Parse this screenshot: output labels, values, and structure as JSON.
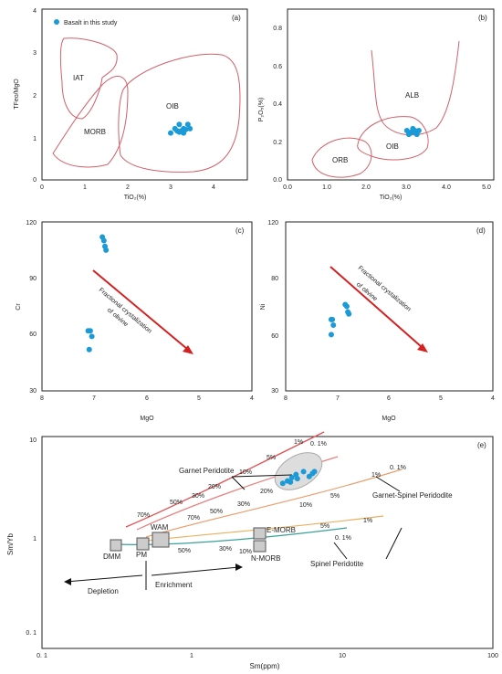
{
  "colors": {
    "point": "#1a9ad6",
    "field": "#d0606a",
    "arrow": "#d42020",
    "axis": "#222"
  },
  "panels": {
    "a": {
      "tag": "(a)",
      "xlabel": "TiO₂(%)",
      "ylabel": "TFeo/MgO",
      "legend": "Basalt in this study",
      "xticks": [
        "0",
        "1",
        "2",
        "3",
        "4"
      ],
      "yticks": [
        "0",
        "1",
        "2",
        "3",
        "4"
      ],
      "fields": [
        "IAT",
        "MORB",
        "OIB"
      ]
    },
    "b": {
      "tag": "(b)",
      "xlabel": "TiO₂(%)",
      "ylabel": "P₂O₅(%)",
      "xticks": [
        "0.0",
        "1.0",
        "2.0",
        "3.0",
        "4.0",
        "5.0"
      ],
      "yticks": [
        "0.0",
        "0.2",
        "0.4",
        "0.6",
        "0.8"
      ],
      "fields": [
        "ORB",
        "OIB",
        "ALB"
      ]
    },
    "c": {
      "tag": "(c)",
      "xlabel": "MgO",
      "ylabel": "Cr",
      "xticks": [
        "8",
        "7",
        "6",
        "5",
        "4"
      ],
      "yticks": [
        "30",
        "60",
        "90",
        "120"
      ],
      "arrow_label_1": "Fractional crystalization",
      "arrow_label_2": "of olivine"
    },
    "d": {
      "tag": "(d)",
      "xlabel": "MgO",
      "ylabel": "Ni",
      "xticks": [
        "8",
        "7",
        "6",
        "5",
        "4"
      ],
      "yticks": [
        "30",
        "60",
        "80",
        "120"
      ],
      "arrow_label_1": "Fractional crystalization",
      "arrow_label_2": "of olivine"
    },
    "e": {
      "tag": "(e)",
      "xlabel": "Sm(ppm)",
      "ylabel": "Sm/Yb",
      "xticks": [
        "0. 1",
        "1",
        "10",
        "100"
      ],
      "yticks": [
        "0. 1",
        "1",
        "10"
      ],
      "labels": {
        "garnet": "Garnet Peridotite",
        "garnet_spinel": "Garnet-Spinel Peridodite",
        "spinel": "Spinel Peridotite",
        "wam": "WAM",
        "emorb": "E-MORB",
        "nmorb": "N-MORB",
        "dmm": "DMM",
        "pm": "PM",
        "depletion": "Depletion",
        "enrichment": "Enrichment"
      }
    }
  },
  "chart_data": [
    {
      "panel": "a",
      "type": "scatter",
      "x": [
        3.0,
        3.1,
        3.2,
        3.25,
        3.3,
        3.35,
        3.4,
        3.2,
        3.3,
        3.45,
        3.15
      ],
      "y": [
        1.1,
        1.2,
        1.12,
        1.15,
        1.2,
        1.18,
        1.3,
        1.3,
        1.1,
        1.2,
        1.15
      ],
      "xlim": [
        0,
        5
      ],
      "ylim": [
        0,
        4
      ]
    },
    {
      "panel": "b",
      "type": "scatter",
      "x": [
        3.0,
        3.1,
        3.15,
        3.2,
        3.25,
        3.05,
        3.3,
        3.2
      ],
      "y": [
        0.26,
        0.25,
        0.27,
        0.26,
        0.24,
        0.24,
        0.26,
        0.25
      ],
      "xlim": [
        0,
        5
      ],
      "ylim": [
        0,
        0.9
      ]
    },
    {
      "panel": "c",
      "type": "scatter",
      "x": [
        6.85,
        6.82,
        6.8,
        6.78,
        7.12,
        7.08,
        7.05,
        7.1
      ],
      "y": [
        112,
        110,
        107,
        105,
        62,
        62,
        59,
        52
      ],
      "xlim": [
        8,
        4
      ],
      "ylim": [
        30,
        120
      ]
    },
    {
      "panel": "d",
      "type": "scatter",
      "x": [
        7.12,
        7.1,
        7.08,
        7.12,
        6.85,
        6.82,
        6.8,
        6.78
      ],
      "y": [
        68,
        68,
        65,
        60,
        76,
        75,
        72,
        71
      ],
      "xlim": [
        8,
        4
      ],
      "ylim": [
        30,
        120
      ]
    },
    {
      "panel": "e",
      "type": "line",
      "log_x": true,
      "log_y": true,
      "xlim": [
        0.1,
        100
      ],
      "ylim": [
        0.05,
        10
      ],
      "scatter": {
        "x": [
          4.0,
          4.3,
          4.6,
          4.9,
          5.5,
          6.0,
          6.3,
          6.5,
          4.5,
          5.0
        ],
        "y": [
          3.4,
          3.6,
          3.9,
          4.2,
          4.5,
          4.0,
          4.3,
          4.5,
          3.5,
          3.8
        ]
      },
      "series": [
        {
          "name": "Garnet Peridotite",
          "ticks": [
            "70%",
            "50%",
            "30%",
            "20%",
            "10%",
            "5%",
            "1%",
            "0. 1%"
          ]
        },
        {
          "name": "Garnet-Spinel Peridodite",
          "ticks": [
            "70%",
            "50%",
            "30%",
            "20%",
            "10%",
            "5%",
            "1%",
            "0. 1%"
          ]
        },
        {
          "name": "Spinel Peridotite",
          "ticks": [
            "50%",
            "30%",
            "10%",
            "5%",
            "1%",
            "0. 1%"
          ]
        }
      ]
    }
  ]
}
